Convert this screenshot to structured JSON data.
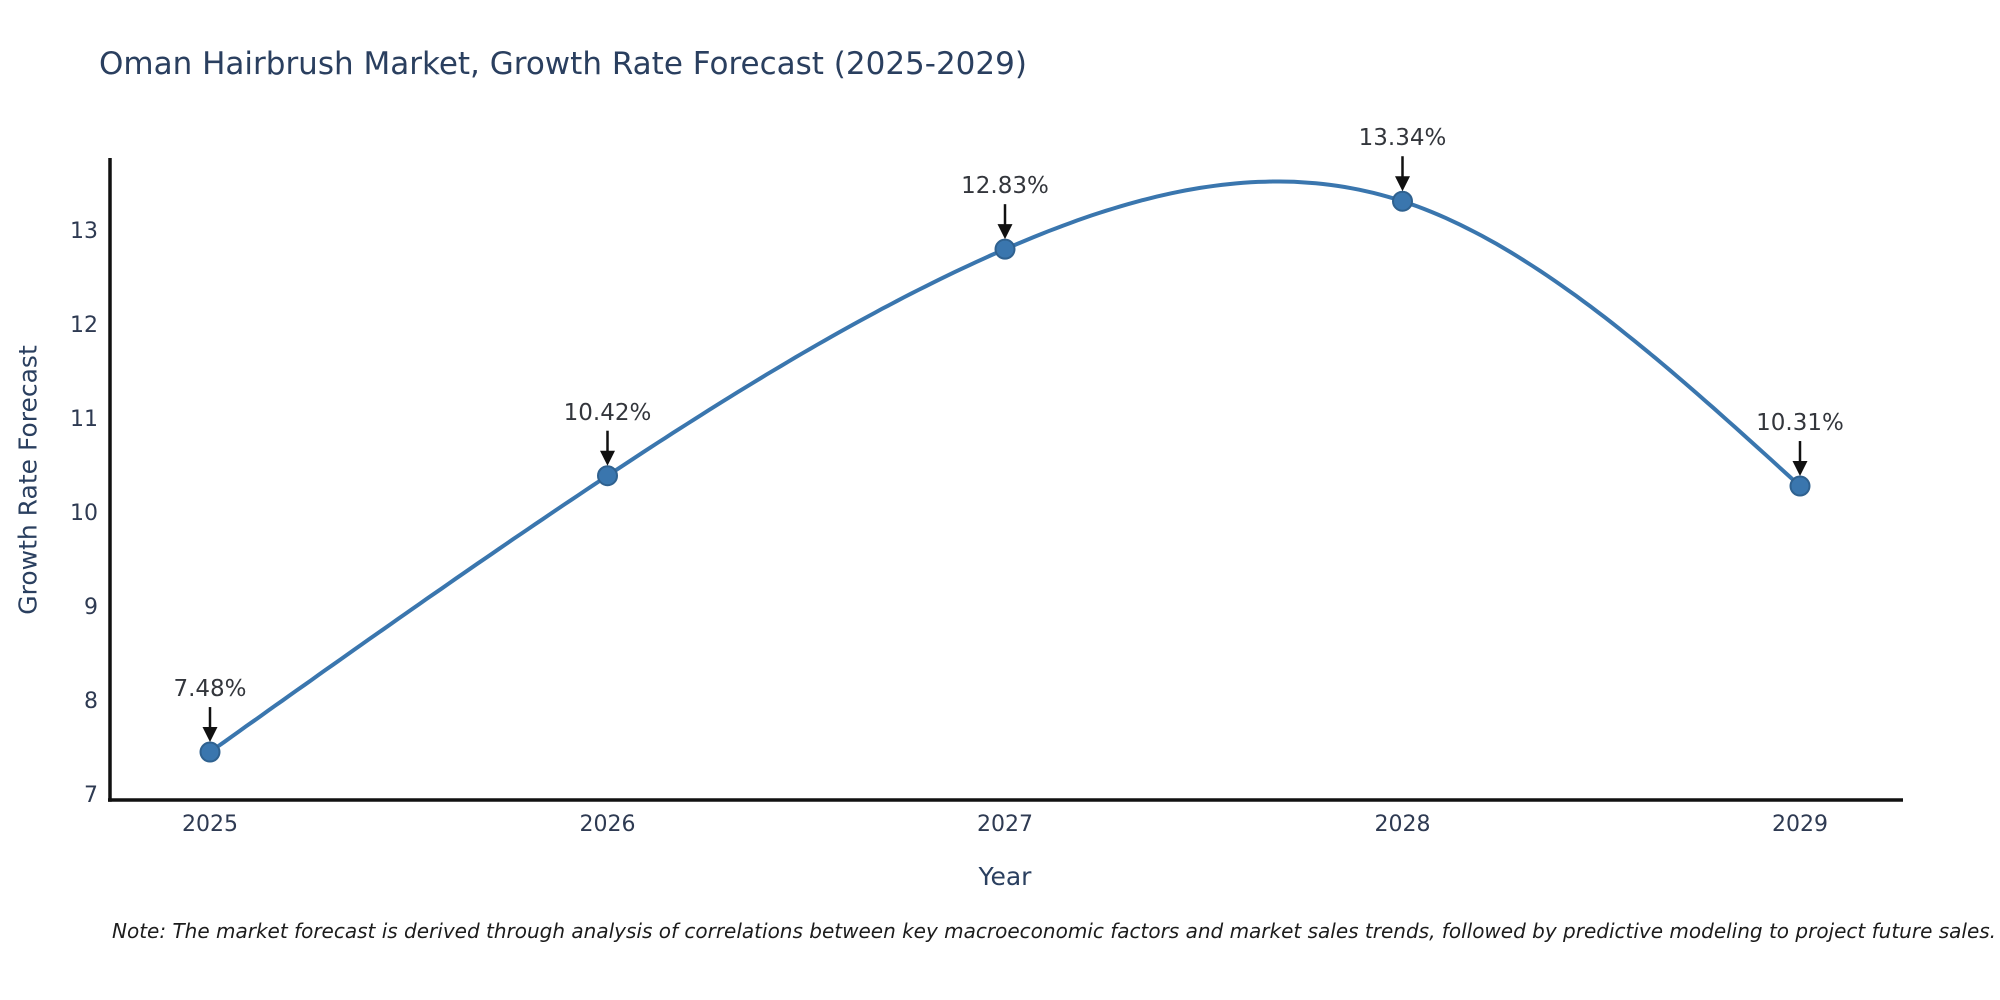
{
  "title": "Oman Hairbrush Market, Growth Rate Forecast (2025-2029)",
  "x_axis": {
    "title": "Year",
    "tick_labels": [
      "2025",
      "2026",
      "2027",
      "2028",
      "2029"
    ]
  },
  "y_axis": {
    "title": "Growth Rate Forecast",
    "tick_labels": [
      "7",
      "8",
      "9",
      "10",
      "11",
      "12",
      "13"
    ],
    "tick_values": [
      7,
      8,
      9,
      10,
      11,
      12,
      13
    ]
  },
  "note": "Note: The market forecast is derived through analysis of correlations between key macroeconomic factors and market sales trends, followed by predictive modeling to project future sales.",
  "colors": {
    "line": "#3a76ae",
    "marker_fill": "#3a76ae",
    "marker_edge": "#2f618f",
    "axis_line": "#111111",
    "arrow": "#111111",
    "title_text": "#2a3f5f",
    "tick_text": "#2e3a52",
    "annotation_text": "#33363c",
    "background": "#ffffff"
  },
  "chart_data": {
    "type": "line",
    "x": [
      2025,
      2026,
      2027,
      2028,
      2029
    ],
    "series": [
      {
        "name": "Growth Rate Forecast",
        "values": [
          7.48,
          10.42,
          12.83,
          13.34,
          10.31
        ]
      }
    ],
    "point_labels": [
      "7.48%",
      "10.42%",
      "12.83%",
      "13.34%",
      "10.31%"
    ],
    "title": "Oman Hairbrush Market, Growth Rate Forecast (2025-2029)",
    "xlabel": "Year",
    "ylabel": "Growth Rate Forecast",
    "ylim": [
      6.97,
      13.8
    ],
    "xlim": [
      2024.75,
      2029.26
    ],
    "grid": false,
    "legend": "none",
    "line_shape": "spline",
    "markers": true,
    "annotation_arrows": "down"
  }
}
